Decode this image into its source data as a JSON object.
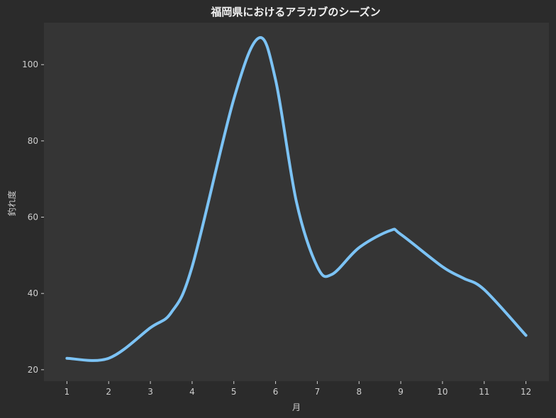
{
  "chart_data": {
    "type": "line",
    "title": "福岡県におけるアラカブのシーズン",
    "xlabel": "月",
    "ylabel": "釣れ度",
    "x": [
      1,
      2,
      3,
      3.5,
      4,
      5,
      5.6,
      6,
      6.5,
      7,
      7.35,
      8,
      8.75,
      9,
      10,
      10.5,
      11,
      12
    ],
    "y": [
      23,
      23,
      31,
      35,
      47,
      91,
      107,
      96,
      64,
      47,
      45,
      52,
      56.5,
      55.5,
      47,
      44,
      41,
      29
    ],
    "xticks": [
      1,
      2,
      3,
      4,
      5,
      6,
      7,
      8,
      9,
      10,
      11,
      12
    ],
    "yticks": [
      20,
      40,
      60,
      80,
      100
    ],
    "xlim": [
      0.45,
      12.55
    ],
    "ylim": [
      17,
      111
    ],
    "grid": false,
    "colors": {
      "page_background": "#2b2b2b",
      "plot_background": "#353535",
      "line": "#7cc3f5",
      "text": "#cfcfcf"
    }
  }
}
